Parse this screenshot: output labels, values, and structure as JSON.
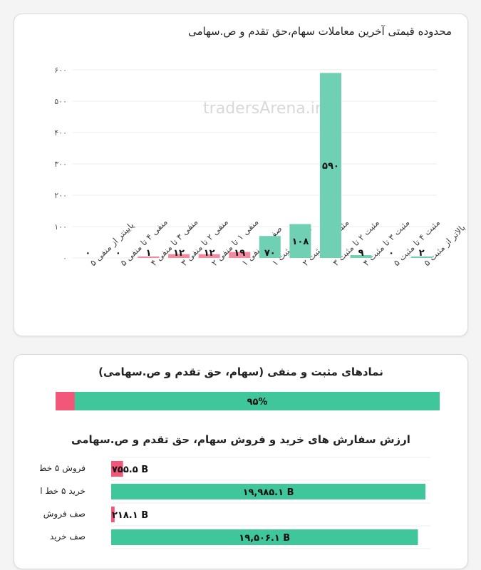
{
  "watermark": "tradersArena.ir",
  "colors": {
    "positive": "#70d0b4",
    "negative": "#f48aa0",
    "pos_solid": "#3fc69b",
    "neg_solid": "#f2577a"
  },
  "chart_data": [
    {
      "type": "bar",
      "title": "محدوده قیمتی آخرین معاملات سهام،حق تقدم و ص.سهامی",
      "xlabel": "",
      "ylabel": "",
      "ylim": [
        0,
        600
      ],
      "yticks": [
        "۰",
        "۱۰۰",
        "۲۰۰",
        "۳۰۰",
        "۴۰۰",
        "۵۰۰",
        "۶۰۰"
      ],
      "categories": [
        "پایینتر از منفی ۵",
        "منفی ۴ تا منفی ۵",
        "منفی ۳ تا منفی ۴",
        "منفی ۲ تا منفی ۳",
        "منفی ۱ تا منفی ۲",
        "صفر تا منفی ۱",
        "صفر تا مثبت ۱",
        "مثبت ۱ تا مثبت ۲",
        "مثبت ۲ تا مثبت ۳",
        "مثبت ۳ تا مثبت ۴",
        "مثبت ۴ تا مثبت ۵",
        "بالاتر از مثبت ۵"
      ],
      "values": [
        0,
        0,
        1,
        12,
        12,
        19,
        70,
        108,
        590,
        9,
        0,
        2
      ],
      "value_labels": [
        "۰",
        "۰",
        "۱",
        "۱۲",
        "۱۲",
        "۱۹",
        "۷۰",
        "۱۰۸",
        "۵۹۰",
        "۹",
        "۰",
        "۲"
      ],
      "signs": [
        "neg",
        "neg",
        "neg",
        "neg",
        "neg",
        "neg",
        "pos",
        "pos",
        "pos",
        "pos",
        "pos",
        "pos"
      ],
      "grid": true
    },
    {
      "type": "bar",
      "title": "نمادهای مثبت و منفی (سهام، حق تقدم و ص.سهامی)",
      "positive_percent": 95,
      "negative_percent": 5,
      "label": "۹۵%"
    },
    {
      "type": "bar",
      "title": "ارزش سفارش های خرید و فروش سهام، حق تقدم و ص.سهامی",
      "categories": [
        "فروش ۵ خط",
        "خرید ۵ خط اول",
        "صف فروش",
        "صف خرید"
      ],
      "values": [
        755.5,
        19985.1,
        218.1,
        19506.1
      ],
      "value_labels": [
        "۷۵۵.۵ B",
        "۱۹,۹۸۵.۱ B",
        "۲۱۸.۱ B",
        "۱۹,۵۰۶.۱ B"
      ],
      "signs": [
        "neg",
        "pos",
        "neg",
        "pos"
      ],
      "xlim": [
        0,
        20300
      ]
    }
  ]
}
